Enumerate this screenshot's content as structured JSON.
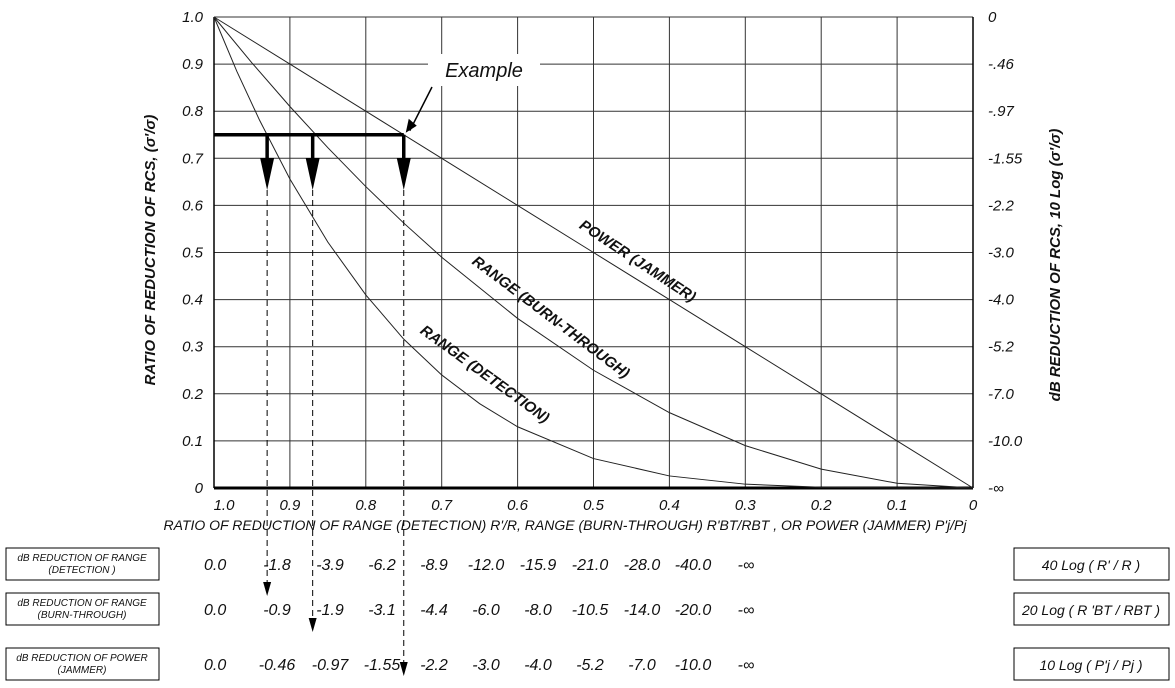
{
  "chart_data": {
    "type": "line",
    "xlabel": "RATIO OF REDUCTION OF RANGE (DETECTION) R'/R, RANGE (BURN-THROUGH) R'BT/RBT , OR POWER (JAMMER) P'j/Pj",
    "ylabel": "RATIO OF REDUCTION OF RCS, (σ'/σ)",
    "y2label": "dB REDUCTION OF RCS, 10 Log (σ'/σ)",
    "xlim": [
      1.0,
      0.0
    ],
    "ylim": [
      0,
      1.0
    ],
    "x_ticks": [
      "1.0",
      "0.9",
      "0.8",
      "0.7",
      "0.6",
      "0.5",
      "0.4",
      "0.3",
      "0.2",
      "0.1",
      "0"
    ],
    "y_ticks": [
      "0",
      "0.1",
      "0.2",
      "0.3",
      "0.4",
      "0.5",
      "0.6",
      "0.7",
      "0.8",
      "0.9",
      "1.0"
    ],
    "y2_ticks": [
      "-∞",
      "-10.0",
      "-7.0",
      "-5.2",
      "-4.0",
      "-3.0",
      "-2.2",
      "-1.55",
      "-.97",
      "-.46",
      "0"
    ],
    "grid": true,
    "series": [
      {
        "name": "POWER (JAMMER)",
        "x": [
          1.0,
          0.9,
          0.8,
          0.7,
          0.6,
          0.5,
          0.4,
          0.3,
          0.2,
          0.1,
          0.0
        ],
        "y": [
          1.0,
          0.9,
          0.8,
          0.7,
          0.6,
          0.5,
          0.4,
          0.3,
          0.2,
          0.1,
          0.0
        ]
      },
      {
        "name": "RANGE (BURN-THROUGH)",
        "x": [
          1.0,
          0.95,
          0.9,
          0.85,
          0.8,
          0.75,
          0.7,
          0.6,
          0.5,
          0.4,
          0.3,
          0.2,
          0.1,
          0.0
        ],
        "y": [
          1.0,
          0.9025,
          0.81,
          0.7225,
          0.64,
          0.5625,
          0.49,
          0.36,
          0.25,
          0.16,
          0.09,
          0.04,
          0.01,
          0.0
        ]
      },
      {
        "name": "RANGE (DETECTION)",
        "x": [
          1.0,
          0.97,
          0.94,
          0.9,
          0.85,
          0.8,
          0.75,
          0.7,
          0.65,
          0.6,
          0.5,
          0.4,
          0.3,
          0.2,
          0.1,
          0.0
        ],
        "y": [
          1.0,
          0.885,
          0.781,
          0.656,
          0.522,
          0.41,
          0.316,
          0.24,
          0.179,
          0.13,
          0.0625,
          0.0256,
          0.0081,
          0.0016,
          0.0001,
          0.0
        ]
      }
    ],
    "example": {
      "label": "Example",
      "y": 0.75,
      "x_values": [
        0.93,
        0.87,
        0.75
      ]
    },
    "db_rows": [
      {
        "label_line1": "dB REDUCTION OF RANGE",
        "label_line2": "(DETECTION )",
        "values": [
          "0.0",
          "-1.8",
          "-3.9",
          "-6.2",
          "-8.9",
          "-12.0",
          "-15.9",
          "-21.0",
          "-28.0",
          "-40.0",
          "-∞"
        ],
        "formula": "40 Log ( R' / R )"
      },
      {
        "label_line1": "dB REDUCTION OF RANGE",
        "label_line2": "(BURN-THROUGH)",
        "values": [
          "0.0",
          "-0.9",
          "-1.9",
          "-3.1",
          "-4.4",
          "-6.0",
          "-8.0",
          "-10.5",
          "-14.0",
          "-20.0",
          "-∞"
        ],
        "formula": "20 Log ( R 'BT / RBT )"
      },
      {
        "label_line1": "dB REDUCTION OF POWER",
        "label_line2": "(JAMMER)",
        "values": [
          "0.0",
          "-0.46",
          "-0.97",
          "-1.55",
          "-2.2",
          "-3.0",
          "-4.0",
          "-5.2",
          "-7.0",
          "-10.0",
          "-∞"
        ],
        "formula": "10 Log ( P'j / Pj )"
      }
    ]
  }
}
